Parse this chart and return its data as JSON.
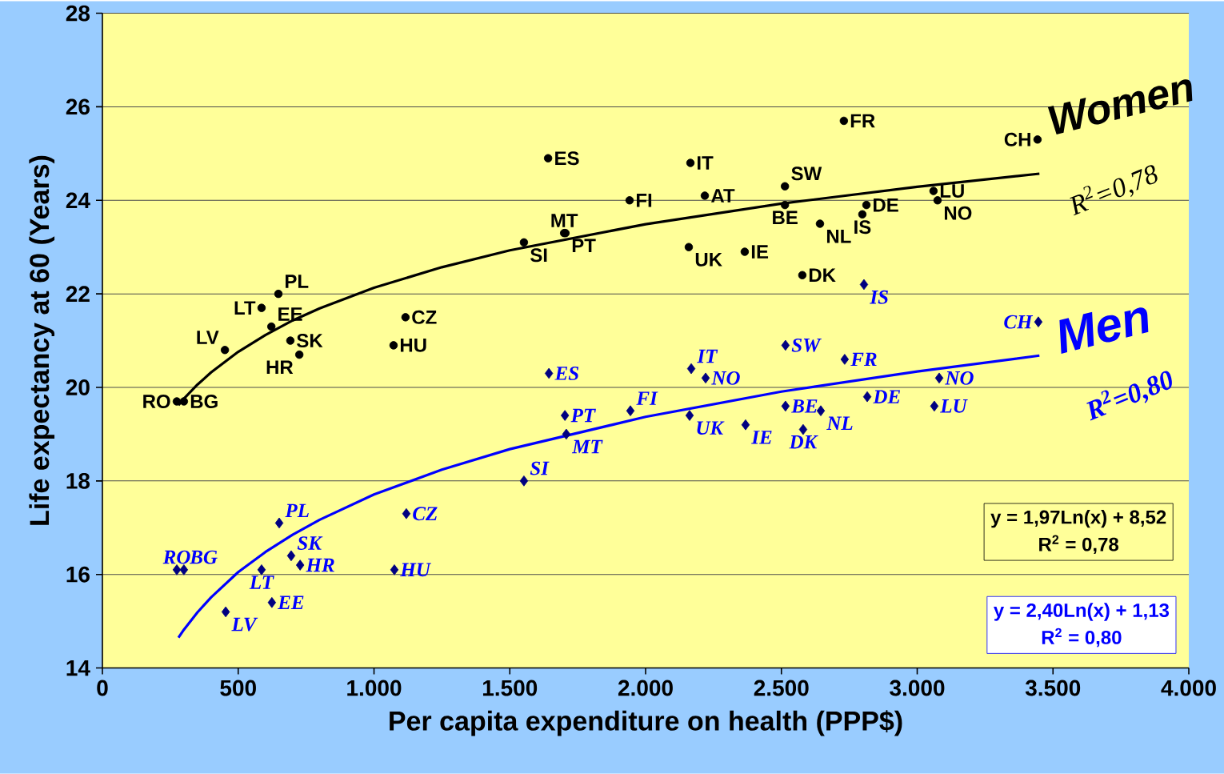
{
  "chart_data": {
    "type": "scatter",
    "xlabel": "Per capita expenditure on health (PPP$)",
    "ylabel": "Life expectancy at 60 (Years)",
    "xlim": [
      0,
      4000
    ],
    "ylim": [
      14,
      28
    ],
    "xticks": [
      0,
      500,
      {
        "value": 1000,
        "label": "1.000"
      },
      {
        "value": 1500,
        "label": "1.500"
      },
      {
        "value": 2000,
        "label": "2.000"
      },
      {
        "value": 2500,
        "label": "2.500"
      },
      {
        "value": 3000,
        "label": "3.000"
      },
      {
        "value": 3500,
        "label": "3.500"
      },
      {
        "value": 4000,
        "label": "4.000"
      }
    ],
    "yticks": [
      14,
      16,
      18,
      20,
      22,
      24,
      26,
      28
    ],
    "grid": "y",
    "legend": false,
    "series": [
      {
        "color": "#000000",
        "marker": "circle",
        "x": [
          274,
          300,
          451,
          586,
          622,
          648,
          692,
          725,
          1072,
          1116,
          1552,
          1641,
          1700,
          1705,
          1941,
          2165,
          2159,
          2218,
          2365,
          2513,
          2513,
          2577,
          2642,
          2730,
          2798,
          2813,
          3060,
          3075,
          3443
        ],
        "values": [
          19.7,
          19.7,
          20.8,
          21.7,
          21.3,
          22.0,
          21.0,
          20.7,
          20.9,
          21.5,
          23.1,
          24.9,
          23.3,
          23.3,
          24.0,
          24.8,
          23.0,
          24.1,
          22.9,
          24.3,
          23.9,
          22.4,
          23.5,
          25.7,
          23.7,
          23.9,
          24.2,
          24.0,
          25.3
        ]
      },
      {
        "color": "#000080",
        "marker": "diamond",
        "x": [
          274,
          300,
          454,
          586,
          624,
          651,
          695,
          728,
          1075,
          1119,
          1552,
          1644,
          1703,
          1708,
          1944,
          2168,
          2221,
          2162,
          2368,
          2515,
          2515,
          2580,
          2645,
          2733,
          2804,
          2816,
          3081,
          3063,
          3446
        ],
        "values": [
          16.1,
          16.1,
          15.2,
          16.1,
          15.4,
          17.1,
          16.4,
          16.2,
          16.1,
          17.3,
          18.0,
          20.3,
          19.4,
          19.0,
          19.5,
          20.4,
          20.2,
          19.4,
          19.2,
          20.9,
          19.6,
          19.1,
          19.5,
          20.6,
          22.2,
          19.8,
          20.2,
          19.6,
          21.4
        ]
      },
      {
        "type": "line",
        "name": "Women",
        "color": "#000000",
        "marker": "none",
        "line_style": "solid",
        "x": [
          280,
          300,
          350,
          400,
          500,
          600,
          700,
          800,
          1000,
          1250,
          1500,
          2000,
          2500,
          3000,
          3450
        ],
        "values": [
          19.62,
          19.76,
          20.06,
          20.32,
          20.76,
          21.12,
          21.43,
          21.69,
          22.13,
          22.57,
          22.93,
          23.49,
          23.93,
          24.29,
          24.57
        ]
      },
      {
        "type": "line",
        "name": "Men",
        "color": "#0000ff",
        "marker": "none",
        "line_style": "solid",
        "x": [
          280,
          300,
          350,
          400,
          500,
          600,
          700,
          800,
          1000,
          1250,
          1500,
          2000,
          2500,
          3000,
          3450
        ],
        "values": [
          14.65,
          14.82,
          15.19,
          15.51,
          16.05,
          16.48,
          16.85,
          17.17,
          17.71,
          18.24,
          18.68,
          19.37,
          19.91,
          20.34,
          20.68
        ]
      }
    ],
    "annotations": [
      {
        "text": "RO",
        "x": 274,
        "y": 19.7
      },
      {
        "text": "BG",
        "x": 300,
        "y": 19.7
      },
      {
        "text": "LV",
        "x": 451,
        "y": 20.8
      },
      {
        "text": "LT",
        "x": 586,
        "y": 21.7
      },
      {
        "text": "EE",
        "x": 622,
        "y": 21.3
      },
      {
        "text": "PL",
        "x": 648,
        "y": 22.0
      },
      {
        "text": "SK",
        "x": 692,
        "y": 21.0
      },
      {
        "text": "HR",
        "x": 725,
        "y": 20.7
      },
      {
        "text": "HU",
        "x": 1072,
        "y": 20.9
      },
      {
        "text": "CZ",
        "x": 1116,
        "y": 21.5
      },
      {
        "text": "SI",
        "x": 1552,
        "y": 23.1
      },
      {
        "text": "ES",
        "x": 1641,
        "y": 24.9
      },
      {
        "text": "MT",
        "x": 1700,
        "y": 23.3
      },
      {
        "text": "PT",
        "x": 1705,
        "y": 23.3
      },
      {
        "text": "FI",
        "x": 1941,
        "y": 24.0
      },
      {
        "text": "IT",
        "x": 2165,
        "y": 24.8
      },
      {
        "text": "UK",
        "x": 2159,
        "y": 23.0
      },
      {
        "text": "AT",
        "x": 2218,
        "y": 24.1
      },
      {
        "text": "IE",
        "x": 2365,
        "y": 22.9
      },
      {
        "text": "SW",
        "x": 2513,
        "y": 24.3
      },
      {
        "text": "BE",
        "x": 2513,
        "y": 23.9
      },
      {
        "text": "DK",
        "x": 2577,
        "y": 22.4
      },
      {
        "text": "NL",
        "x": 2642,
        "y": 23.5
      },
      {
        "text": "FR",
        "x": 2730,
        "y": 25.7
      },
      {
        "text": "IS",
        "x": 2798,
        "y": 23.7
      },
      {
        "text": "DE",
        "x": 2813,
        "y": 23.9
      },
      {
        "text": "LU",
        "x": 3060,
        "y": 24.2
      },
      {
        "text": "NO",
        "x": 3075,
        "y": 24.0
      },
      {
        "text": "CH",
        "x": 3443,
        "y": 25.3
      },
      {
        "text": "RO",
        "x": 274,
        "y": 16.1
      },
      {
        "text": "BG",
        "x": 300,
        "y": 16.1
      },
      {
        "text": "LV",
        "x": 454,
        "y": 15.2
      },
      {
        "text": "LT",
        "x": 586,
        "y": 16.1
      },
      {
        "text": "EE",
        "x": 624,
        "y": 15.4
      },
      {
        "text": "PL",
        "x": 651,
        "y": 17.1
      },
      {
        "text": "SK",
        "x": 695,
        "y": 16.4
      },
      {
        "text": "HR",
        "x": 728,
        "y": 16.2
      },
      {
        "text": "HU",
        "x": 1075,
        "y": 16.1
      },
      {
        "text": "CZ",
        "x": 1119,
        "y": 17.3
      },
      {
        "text": "SI",
        "x": 1552,
        "y": 18.0
      },
      {
        "text": "ES",
        "x": 1644,
        "y": 20.3
      },
      {
        "text": "PT",
        "x": 1703,
        "y": 19.4
      },
      {
        "text": "MT",
        "x": 1708,
        "y": 19.0
      },
      {
        "text": "FI",
        "x": 1944,
        "y": 19.5
      },
      {
        "text": "IT",
        "x": 2168,
        "y": 20.4
      },
      {
        "text": "NO",
        "x": 2221,
        "y": 20.2
      },
      {
        "text": "UK",
        "x": 2162,
        "y": 19.4
      },
      {
        "text": "IE",
        "x": 2368,
        "y": 19.2
      },
      {
        "text": "SW",
        "x": 2515,
        "y": 20.9
      },
      {
        "text": "BE",
        "x": 2515,
        "y": 19.6
      },
      {
        "text": "DK",
        "x": 2580,
        "y": 19.1
      },
      {
        "text": "NL",
        "x": 2645,
        "y": 19.5
      },
      {
        "text": "FR",
        "x": 2733,
        "y": 20.6
      },
      {
        "text": "IS",
        "x": 2804,
        "y": 22.2
      },
      {
        "text": "DE",
        "x": 2816,
        "y": 19.8
      },
      {
        "text": "NO",
        "x": 3081,
        "y": 20.2
      },
      {
        "text": "LU",
        "x": 3063,
        "y": 19.6
      },
      {
        "text": "CH",
        "x": 3446,
        "y": 21.4
      },
      "R$^{2}$=0,78",
      "R$^{2}$=0,80",
      "y = 1,97Ln(x) + 8,52",
      "R$^{2}$ = 0,78",
      "y = 2,40Ln(x) + 1,13",
      "R$^{2}$ = 0,80"
    ]
  }
}
